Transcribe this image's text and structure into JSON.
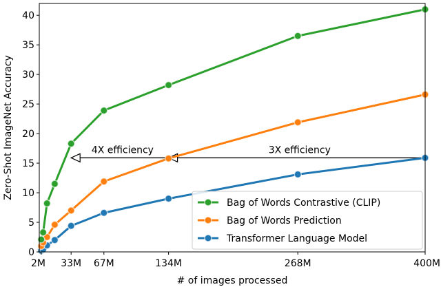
{
  "chart_data": {
    "type": "line",
    "xlabel": "# of images processed",
    "ylabel": "Zero-Shot ImageNet Accuracy",
    "xlim": [
      0,
      400
    ],
    "ylim": [
      0,
      42
    ],
    "x_ticks": [
      2,
      33,
      67,
      134,
      268,
      400
    ],
    "x_tick_labels": [
      "2M",
      "33M",
      "67M",
      "134M",
      "268M",
      "400M"
    ],
    "y_ticks": [
      0,
      5,
      10,
      15,
      20,
      25,
      30,
      35,
      40
    ],
    "y_tick_labels": [
      "0",
      "5",
      "10",
      "15",
      "20",
      "25",
      "30",
      "35",
      "40"
    ],
    "grid": false,
    "legend_position": "bottom-right",
    "series": [
      {
        "name": "Bag of Words Contrastive (CLIP)",
        "color": "#2ca02c",
        "x": [
          2,
          4,
          8,
          16,
          33,
          67,
          134,
          268,
          400
        ],
        "y": [
          2.1,
          3.3,
          8.2,
          11.5,
          18.3,
          23.9,
          28.2,
          36.5,
          41.0
        ]
      },
      {
        "name": "Bag of Words Prediction",
        "color": "#ff7f0e",
        "x": [
          2,
          4,
          8,
          16,
          33,
          67,
          134,
          268,
          400
        ],
        "y": [
          1.0,
          1.6,
          2.5,
          4.6,
          7.0,
          11.9,
          15.8,
          21.9,
          26.6
        ]
      },
      {
        "name": "Transformer Language Model",
        "color": "#1f77b4",
        "x": [
          2,
          4,
          8,
          16,
          33,
          67,
          134,
          268,
          400
        ],
        "y": [
          0.2,
          0.4,
          1.1,
          2.0,
          4.4,
          6.6,
          9.0,
          13.1,
          15.9
        ]
      }
    ],
    "annotations": [
      {
        "text": "4X efficiency",
        "from": [
          134,
          15.9
        ],
        "to": [
          33,
          15.9
        ]
      },
      {
        "text": "3X efficiency",
        "from": [
          400,
          15.9
        ],
        "to": [
          134,
          15.9
        ]
      }
    ]
  }
}
